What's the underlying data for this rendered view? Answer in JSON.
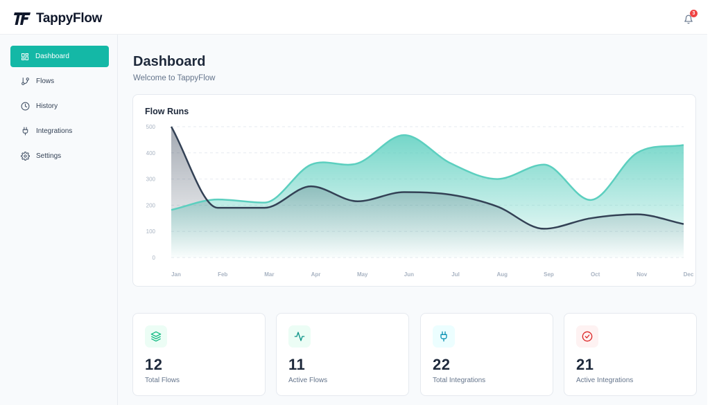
{
  "app": {
    "name": "TappyFlow",
    "logo_text": "TF"
  },
  "header": {
    "notification_count": "3"
  },
  "sidebar": {
    "items": [
      {
        "label": "Dashboard",
        "icon": "grid-icon",
        "active": true
      },
      {
        "label": "Flows",
        "icon": "git-branch-icon",
        "active": false
      },
      {
        "label": "History",
        "icon": "clock-icon",
        "active": false
      },
      {
        "label": "Integrations",
        "icon": "plug-icon",
        "active": false
      },
      {
        "label": "Settings",
        "icon": "gear-icon",
        "active": false
      }
    ]
  },
  "page": {
    "title": "Dashboard",
    "subtitle": "Welcome to TappyFlow"
  },
  "chart_data": {
    "type": "area",
    "title": "Flow Runs",
    "categories": [
      "Jan",
      "Feb",
      "Mar",
      "Apr",
      "May",
      "Jun",
      "Jul",
      "Aug",
      "Sep",
      "Oct",
      "Nov",
      "Dec"
    ],
    "yticks": [
      0,
      100,
      200,
      300,
      400,
      500
    ],
    "ylim": [
      0,
      500
    ],
    "grid": true,
    "series": [
      {
        "color": "#5ccfbf",
        "values": [
          182,
          222,
          210,
          355,
          360,
          468,
          360,
          300,
          355,
          220,
          400,
          430
        ]
      },
      {
        "color": "#334155",
        "values": [
          500,
          190,
          190,
          272,
          215,
          250,
          240,
          195,
          110,
          150,
          165,
          128
        ]
      }
    ]
  },
  "stats": [
    {
      "value": "12",
      "label": "Total Flows",
      "icon": "layers-icon",
      "bg": "#ecfdf5",
      "fg": "#10b981"
    },
    {
      "value": "11",
      "label": "Active Flows",
      "icon": "activity-icon",
      "bg": "#ecfdf5",
      "fg": "#0d9488"
    },
    {
      "value": "22",
      "label": "Total Integrations",
      "icon": "plug-icon",
      "bg": "#ecfeff",
      "fg": "#0891b2"
    },
    {
      "value": "21",
      "label": "Active Integrations",
      "icon": "check-circle-icon",
      "bg": "#fef2f2",
      "fg": "#dc2626"
    }
  ]
}
